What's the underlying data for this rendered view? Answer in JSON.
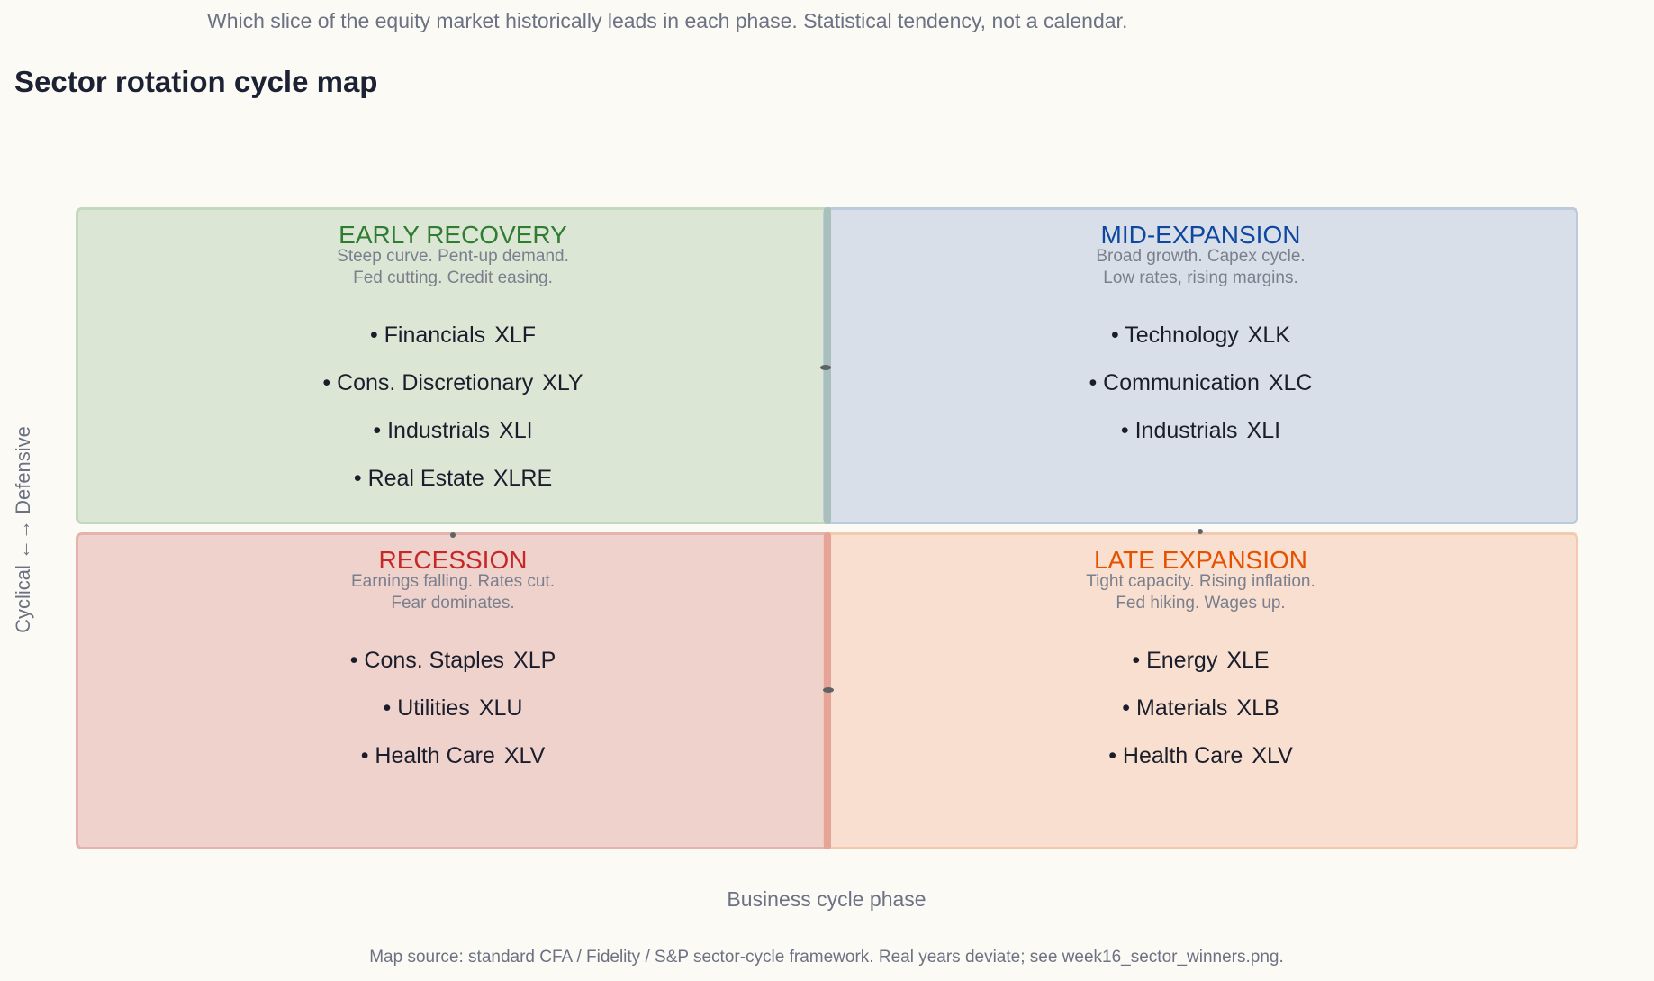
{
  "header": {
    "subtitle": "Which slice of the equity market historically leads in each phase. Statistical tendency, not a calendar.",
    "title": "Sector rotation cycle map"
  },
  "axes": {
    "y_label": "Cyclical ←→ Defensive",
    "x_label": "Business cycle phase"
  },
  "footnote": "Map source: standard CFA / Fidelity / S&P sector-cycle framework. Real years deviate; see week16_sector_winners.png.",
  "colors": {
    "early_title": "#2e7d32",
    "mid_title": "#0d47a1",
    "recession_title": "#c62828",
    "late_title": "#e65100"
  },
  "quadrants": {
    "early": {
      "name": "EARLY RECOVERY",
      "desc_line1": "Steep curve. Pent-up demand.",
      "desc_line2": "Fed cutting. Credit easing.",
      "sectors": [
        {
          "label": "• Financials",
          "ticker": "XLF"
        },
        {
          "label": "• Cons. Discretionary",
          "ticker": "XLY"
        },
        {
          "label": "• Industrials",
          "ticker": "XLI"
        },
        {
          "label": "• Real Estate",
          "ticker": "XLRE"
        }
      ]
    },
    "mid": {
      "name": "MID-EXPANSION",
      "desc_line1": "Broad growth. Capex cycle.",
      "desc_line2": "Low rates, rising margins.",
      "sectors": [
        {
          "label": "• Technology",
          "ticker": "XLK"
        },
        {
          "label": "• Communication",
          "ticker": "XLC"
        },
        {
          "label": "• Industrials",
          "ticker": "XLI"
        }
      ]
    },
    "recession": {
      "name": "RECESSION",
      "desc_line1": "Earnings falling. Rates cut.",
      "desc_line2": "Fear dominates.",
      "sectors": [
        {
          "label": "• Cons. Staples",
          "ticker": "XLP"
        },
        {
          "label": "• Utilities",
          "ticker": "XLU"
        },
        {
          "label": "• Health Care",
          "ticker": "XLV"
        }
      ]
    },
    "late": {
      "name": "LATE EXPANSION",
      "desc_line1": "Tight capacity. Rising inflation.",
      "desc_line2": "Fed hiking. Wages up.",
      "sectors": [
        {
          "label": "• Energy",
          "ticker": "XLE"
        },
        {
          "label": "• Materials",
          "ticker": "XLB"
        },
        {
          "label": "• Health Care",
          "ticker": "XLV"
        }
      ]
    }
  }
}
